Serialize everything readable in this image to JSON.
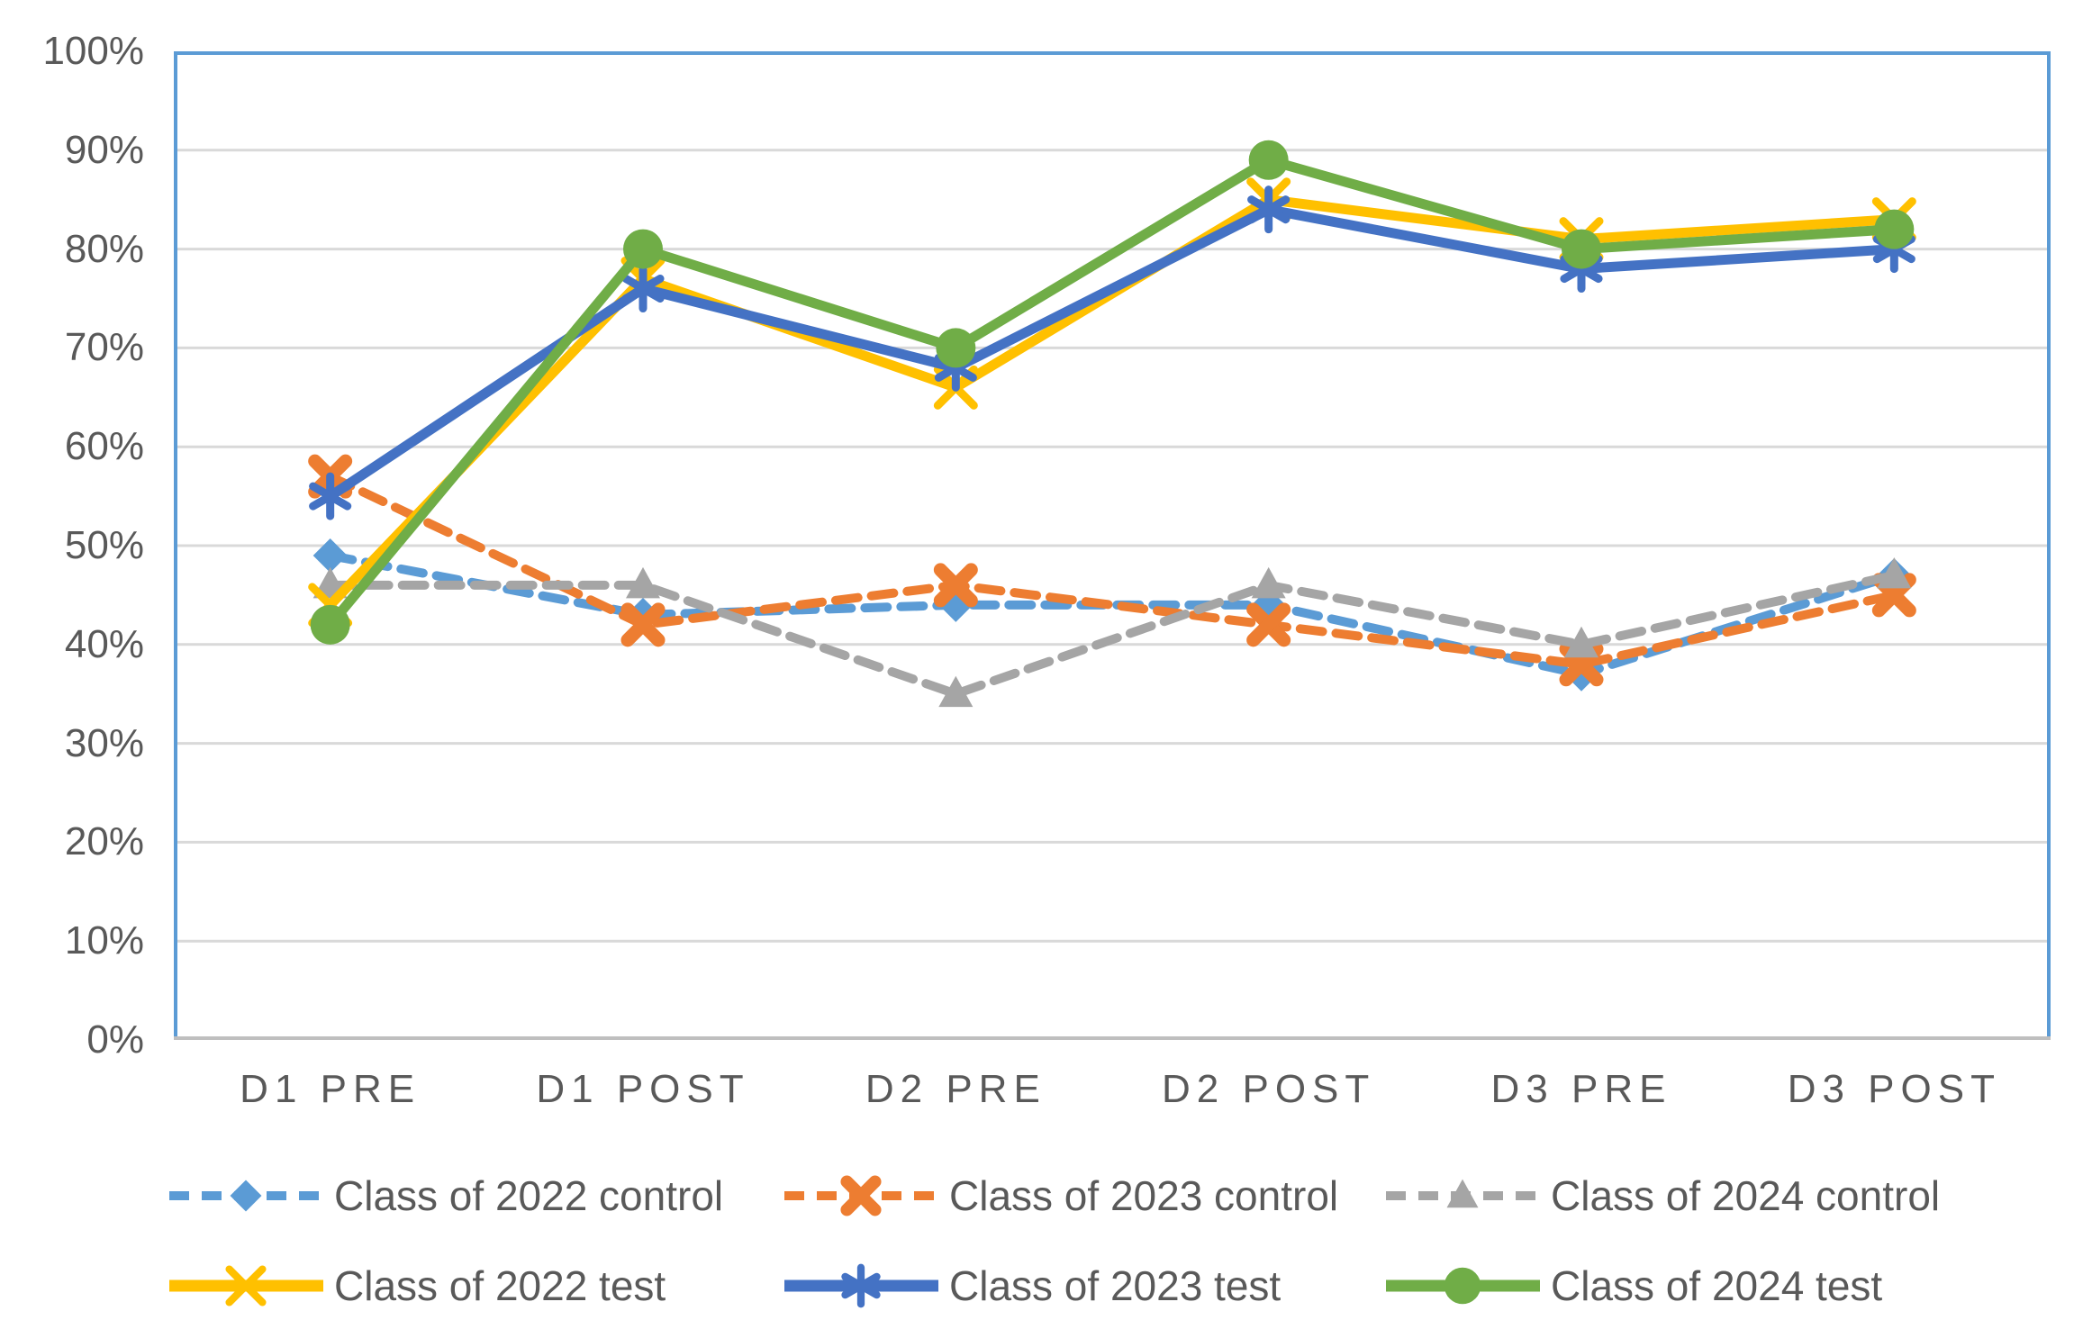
{
  "chart_data": {
    "type": "line",
    "title": "",
    "xlabel": "",
    "ylabel": "",
    "ylim": [
      0,
      100
    ],
    "grid": true,
    "legend_position": "bottom",
    "y_tick_labels": [
      "100%",
      "90%",
      "80%",
      "70%",
      "60%",
      "50%",
      "40%",
      "30%",
      "20%",
      "10%",
      "0%"
    ],
    "categories": [
      "D1 PRE",
      "D1 POST",
      "D2 PRE",
      "D2 POST",
      "D3 PRE",
      "D3 POST"
    ],
    "series": [
      {
        "name": "Class of 2022 control",
        "values": [
          49,
          43,
          44,
          44,
          37,
          47
        ],
        "color": "#5B9BD5",
        "line_style": "dashed",
        "marker": "diamond"
      },
      {
        "name": "Class of 2023 control",
        "values": [
          57,
          42,
          46,
          42,
          38,
          45
        ],
        "color": "#ED7D31",
        "line_style": "dashed",
        "marker": "xbold"
      },
      {
        "name": "Class of 2024 control",
        "values": [
          46,
          46,
          35,
          46,
          40,
          47
        ],
        "color": "#A5A5A5",
        "line_style": "dashed",
        "marker": "triangle"
      },
      {
        "name": "Class of 2022 test",
        "values": [
          44,
          77,
          66,
          85,
          81,
          83
        ],
        "color": "#FFC000",
        "line_style": "solid",
        "marker": "x"
      },
      {
        "name": "Class of 2023 test",
        "values": [
          55,
          76,
          68,
          84,
          78,
          80
        ],
        "color": "#4472C4",
        "line_style": "solid",
        "marker": "asterisk"
      },
      {
        "name": "Class of 2024 test",
        "values": [
          42,
          80,
          70,
          89,
          80,
          82
        ],
        "color": "#70AD47",
        "line_style": "solid",
        "marker": "circle"
      }
    ],
    "colors": {
      "plot_border": "#5B9BD5",
      "gridline": "#D9D9D9",
      "axis_line": "#BFBFBF",
      "tick_text": "#595959",
      "legend_text": "#595959"
    }
  }
}
